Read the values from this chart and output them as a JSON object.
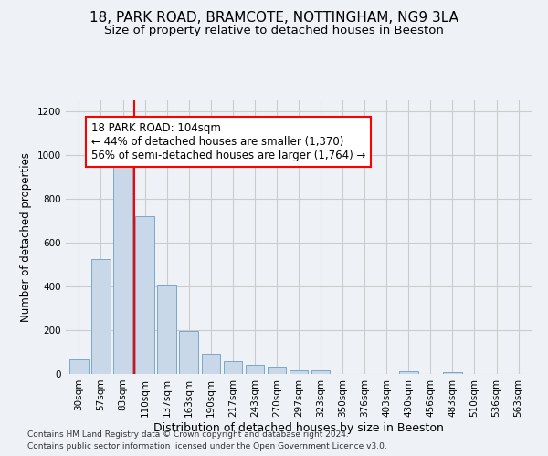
{
  "title1": "18, PARK ROAD, BRAMCOTE, NOTTINGHAM, NG9 3LA",
  "title2": "Size of property relative to detached houses in Beeston",
  "xlabel": "Distribution of detached houses by size in Beeston",
  "ylabel": "Number of detached properties",
  "footer1": "Contains HM Land Registry data © Crown copyright and database right 2024.",
  "footer2": "Contains public sector information licensed under the Open Government Licence v3.0.",
  "bin_labels": [
    "30sqm",
    "57sqm",
    "83sqm",
    "110sqm",
    "137sqm",
    "163sqm",
    "190sqm",
    "217sqm",
    "243sqm",
    "270sqm",
    "297sqm",
    "323sqm",
    "350sqm",
    "376sqm",
    "403sqm",
    "430sqm",
    "456sqm",
    "483sqm",
    "510sqm",
    "536sqm",
    "563sqm"
  ],
  "bar_values": [
    65,
    525,
    990,
    720,
    405,
    195,
    90,
    60,
    40,
    32,
    18,
    18,
    0,
    0,
    0,
    12,
    0,
    10,
    0,
    0,
    0
  ],
  "bar_color": "#c8d8e8",
  "bar_edge_color": "#7aa8c8",
  "bar_width": 0.85,
  "red_line_x": 2.5,
  "annotation_text": "18 PARK ROAD: 104sqm\n← 44% of detached houses are smaller (1,370)\n56% of semi-detached houses are larger (1,764) →",
  "annotation_box_color": "white",
  "annotation_box_edge": "red",
  "ylim": [
    0,
    1250
  ],
  "yticks": [
    0,
    200,
    400,
    600,
    800,
    1000,
    1200
  ],
  "grid_color": "#cccccc",
  "background_color": "#eef2f7",
  "axes_background": "#eef2f7",
  "title1_fontsize": 11,
  "title2_fontsize": 9.5,
  "xlabel_fontsize": 9,
  "ylabel_fontsize": 8.5,
  "tick_fontsize": 7.5,
  "annotation_fontsize": 8.5
}
